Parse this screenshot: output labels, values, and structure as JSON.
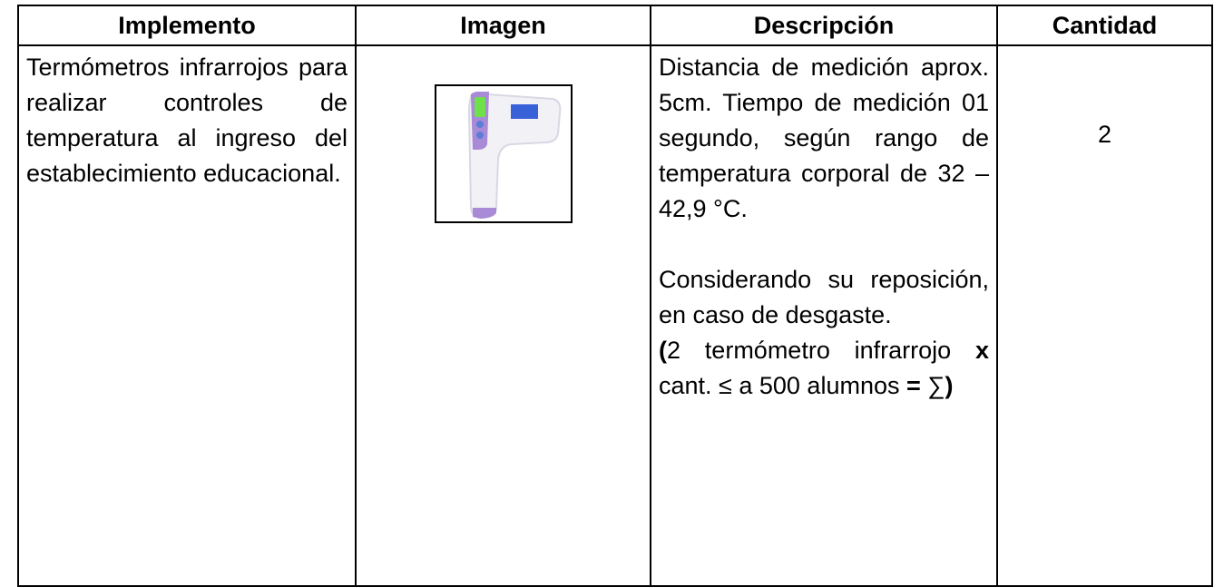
{
  "table": {
    "header": [
      "Implemento",
      "Imagen",
      "Descripción",
      "Cantidad"
    ],
    "rows": [
      {
        "implemento": "Termómetros infrarrojos para realizar controles de temperatura al ingreso del establecimiento educacional.",
        "descripcion": [
          "Distancia de medición aprox. 5cm. Tiempo de medición 01 segundo, según rango de temperatura corporal de 32 – 42,9 °C.",
          "Considerando su reposición, en caso de desgaste."
        ],
        "formula": [
          "(",
          "2 termómetro infrarrojo",
          "x",
          "cant. ≤ a 500 alumnos",
          "=",
          "∑",
          ")"
        ],
        "cantidad": "2"
      }
    ]
  }
}
